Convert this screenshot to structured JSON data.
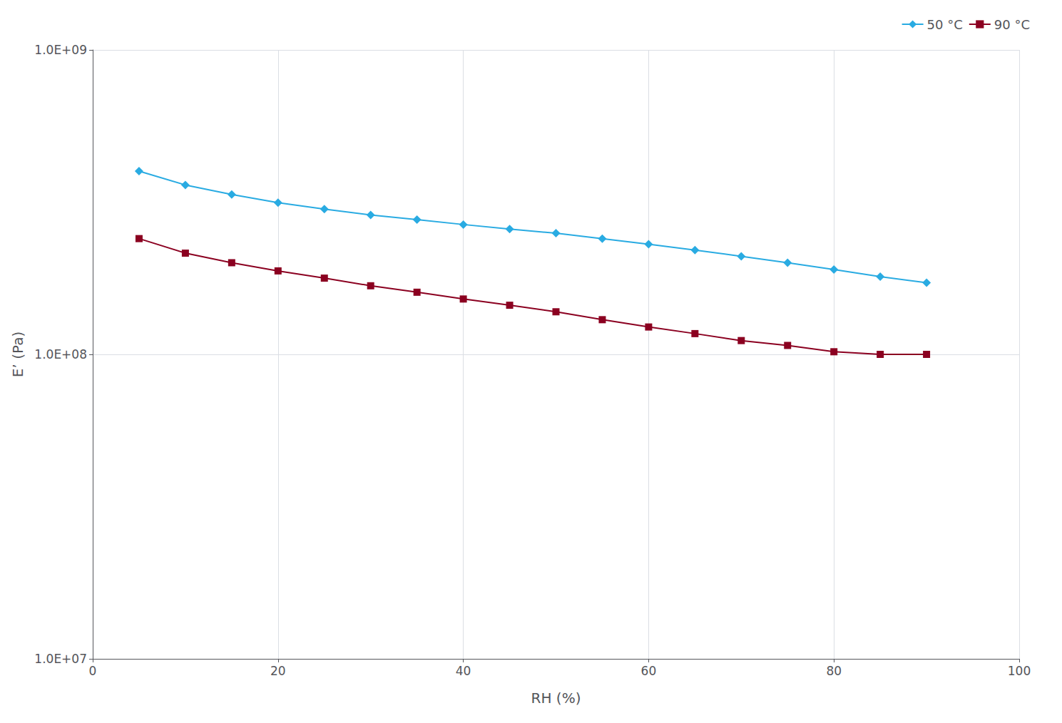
{
  "chart_data": {
    "type": "line",
    "xlabel": "RH (%)",
    "ylabel": "E’ (Pa)",
    "x": [
      5,
      10,
      15,
      20,
      25,
      30,
      35,
      40,
      45,
      50,
      55,
      60,
      65,
      70,
      75,
      80,
      85,
      90
    ],
    "series": [
      {
        "name": "50 °C",
        "color": "#29ABE2",
        "marker": "diamond",
        "values": [
          400000000.0,
          360000000.0,
          335000000.0,
          315000000.0,
          300000000.0,
          287000000.0,
          277000000.0,
          267000000.0,
          258000000.0,
          250000000.0,
          240000000.0,
          230000000.0,
          220000000.0,
          210000000.0,
          200000000.0,
          190000000.0,
          180000000.0,
          172000000.0
        ]
      },
      {
        "name": "90 °C",
        "color": "#8B0020",
        "marker": "square",
        "values": [
          240000000.0,
          215000000.0,
          200000000.0,
          188000000.0,
          178000000.0,
          168000000.0,
          160000000.0,
          152000000.0,
          145000000.0,
          138000000.0,
          130000000.0,
          123000000.0,
          117000000.0,
          111000000.0,
          107000000.0,
          102000000.0,
          100000000.0,
          100000000.0
        ]
      }
    ],
    "xlim": [
      0,
      100
    ],
    "xticks": [
      0,
      20,
      40,
      60,
      80,
      100
    ],
    "ylim": [
      10000000.0,
      1000000000.0
    ],
    "yticks": [
      {
        "value": 10000000.0,
        "label": "1.0E+07"
      },
      {
        "value": 100000000.0,
        "label": "1.0E+08"
      },
      {
        "value": 1000000000.0,
        "label": "1.0E+09"
      }
    ],
    "log": "y",
    "grid": true,
    "legend": "upper right"
  }
}
